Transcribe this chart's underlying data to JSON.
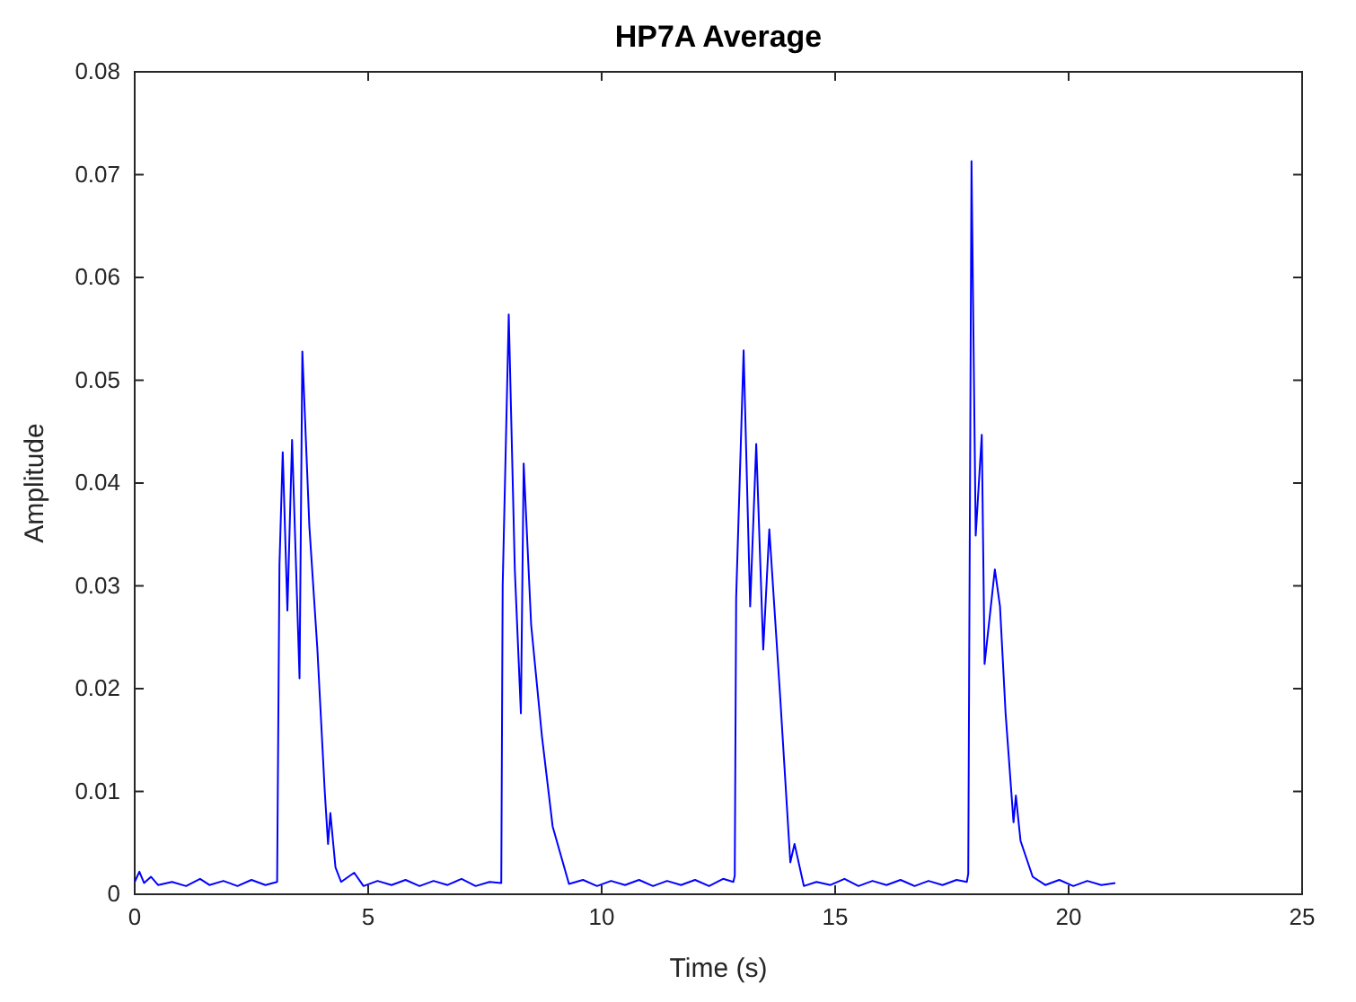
{
  "chart_data": {
    "type": "line",
    "title": "HP7A Average",
    "xlabel": "Time (s)",
    "ylabel": "Amplitude",
    "xlim": [
      0,
      25
    ],
    "xticks": [
      0,
      5,
      10,
      15,
      20,
      25
    ],
    "ylim": [
      0,
      0.08
    ],
    "yticks": [
      0,
      0.01,
      0.02,
      0.03,
      0.04,
      0.05,
      0.06,
      0.07,
      0.08
    ],
    "series": [
      {
        "color": "#0000ff",
        "x": [
          0,
          0.1,
          0.2,
          0.35,
          0.5,
          0.8,
          1.1,
          1.4,
          1.6,
          1.9,
          2.2,
          2.5,
          2.8,
          3.05,
          3.1,
          3.17,
          3.27,
          3.37,
          3.53,
          3.59,
          3.74,
          3.91,
          4.07,
          4.14,
          4.19,
          4.3,
          4.42,
          4.7,
          4.9,
          5.2,
          5.5,
          5.8,
          6.1,
          6.4,
          6.7,
          7.0,
          7.3,
          7.6,
          7.85,
          7.88,
          8.01,
          8.14,
          8.27,
          8.33,
          8.49,
          8.72,
          8.95,
          9.3,
          9.6,
          9.9,
          10.2,
          10.5,
          10.8,
          11.1,
          11.4,
          11.7,
          12.0,
          12.3,
          12.6,
          12.82,
          12.85,
          12.88,
          13.04,
          13.18,
          13.31,
          13.46,
          13.59,
          13.82,
          14.04,
          14.13,
          14.33,
          14.6,
          14.9,
          15.2,
          15.5,
          15.8,
          16.1,
          16.4,
          16.7,
          17.0,
          17.3,
          17.6,
          17.82,
          17.85,
          17.92,
          18.01,
          18.14,
          18.2,
          18.42,
          18.53,
          18.65,
          18.82,
          18.87,
          18.97,
          19.23,
          19.5,
          19.8,
          20.1,
          20.4,
          20.7,
          21.0
        ],
        "values": [
          0.0012,
          0.0022,
          0.0011,
          0.0017,
          0.0009,
          0.0012,
          0.0008,
          0.0015,
          0.0009,
          0.0013,
          0.0008,
          0.0014,
          0.0009,
          0.0012,
          0.032,
          0.043,
          0.0276,
          0.0442,
          0.021,
          0.0528,
          0.0358,
          0.024,
          0.01,
          0.0049,
          0.0079,
          0.0026,
          0.0012,
          0.0021,
          0.0008,
          0.0013,
          0.0009,
          0.0014,
          0.0008,
          0.0013,
          0.0009,
          0.0015,
          0.0008,
          0.0012,
          0.0011,
          0.03,
          0.0564,
          0.0316,
          0.0176,
          0.0419,
          0.0262,
          0.0154,
          0.0066,
          0.001,
          0.0014,
          0.0008,
          0.0013,
          0.0009,
          0.0014,
          0.0008,
          0.0013,
          0.0009,
          0.0014,
          0.0008,
          0.0015,
          0.0012,
          0.0018,
          0.0288,
          0.0529,
          0.028,
          0.0438,
          0.0238,
          0.0355,
          0.0194,
          0.0031,
          0.0049,
          0.0008,
          0.0012,
          0.0009,
          0.0015,
          0.0008,
          0.0013,
          0.0009,
          0.0014,
          0.0008,
          0.0013,
          0.0009,
          0.0014,
          0.0012,
          0.002,
          0.0713,
          0.0349,
          0.0447,
          0.0224,
          0.0316,
          0.028,
          0.0176,
          0.007,
          0.0096,
          0.0052,
          0.0017,
          0.0009,
          0.0014,
          0.0008,
          0.0013,
          0.0009,
          0.0011
        ]
      }
    ]
  }
}
